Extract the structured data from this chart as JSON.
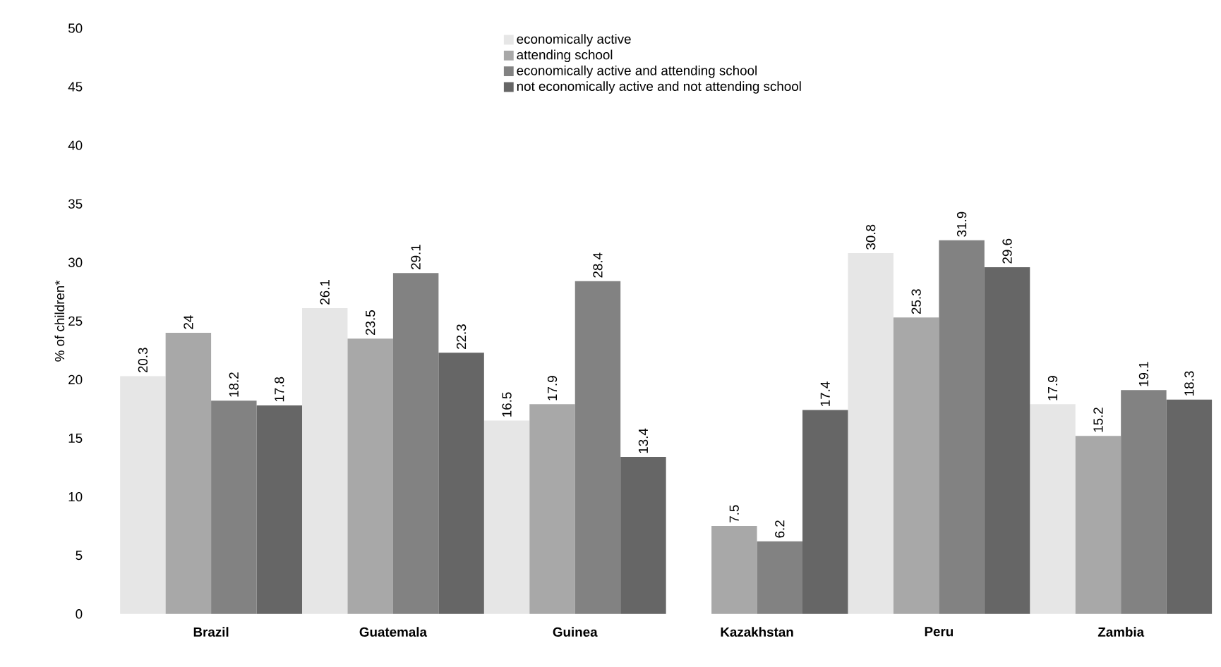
{
  "chart_data": {
    "type": "bar",
    "ylabel": "% of children*",
    "categories": [
      "Brazil",
      "Guatemala",
      "Guinea",
      "Kazakhstan",
      "Peru",
      "Zambia"
    ],
    "series": [
      {
        "name": "economically active",
        "color": "#e6e6e6",
        "values": [
          20.3,
          26.1,
          16.5,
          null,
          30.8,
          17.9
        ]
      },
      {
        "name": "attending school",
        "color": "#a8a8a8",
        "values": [
          24,
          23.5,
          17.9,
          7.5,
          25.3,
          15.2
        ]
      },
      {
        "name": "economically active and attending school",
        "color": "#828282",
        "values": [
          18.2,
          29.1,
          28.4,
          6.2,
          31.9,
          19.1
        ]
      },
      {
        "name": "not economically active and not attending school",
        "color": "#666666",
        "values": [
          17.8,
          22.3,
          13.4,
          17.4,
          29.6,
          18.3
        ]
      }
    ],
    "ylim": [
      0,
      50
    ],
    "yticks": [
      0,
      5,
      10,
      15,
      20,
      25,
      30,
      35,
      40,
      45,
      50
    ],
    "data_labels": true,
    "legend": "top",
    "grid": false
  }
}
